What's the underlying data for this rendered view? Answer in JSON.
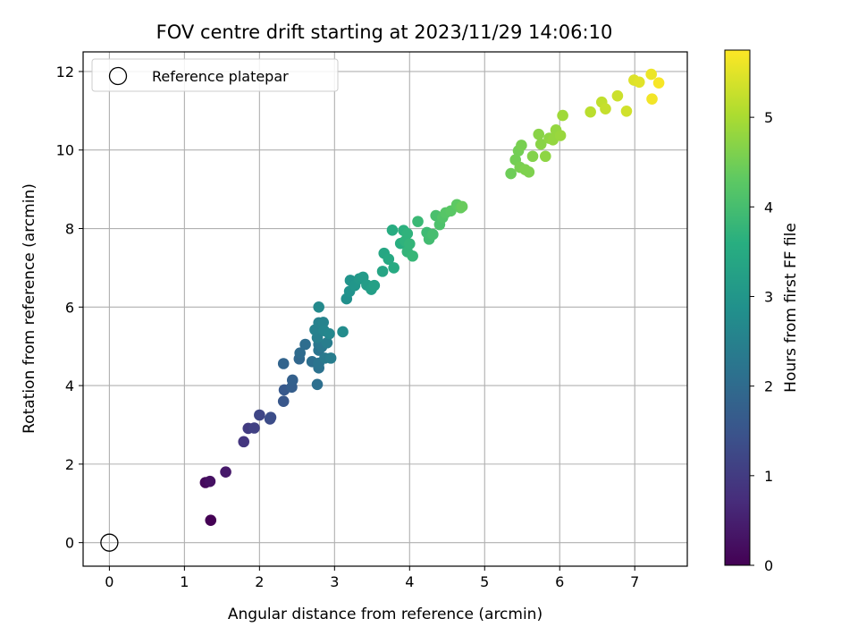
{
  "chart_data": {
    "type": "scatter",
    "title": "FOV centre drift starting at 2023/11/29 14:06:10",
    "xlabel": "Angular distance from reference (arcmin)",
    "ylabel": "Rotation from reference (arcmin)",
    "xlim": [
      -0.35,
      7.7
    ],
    "ylim": [
      -0.6,
      12.5
    ],
    "xticks": [
      0,
      1,
      2,
      3,
      4,
      5,
      6,
      7
    ],
    "yticks": [
      0,
      2,
      4,
      6,
      8,
      10,
      12
    ],
    "grid": true,
    "legend": {
      "placement": "top-left",
      "entries": [
        "Reference platepar"
      ]
    },
    "reference_point": {
      "x": 0,
      "y": 0
    },
    "colorbar": {
      "label": "Hours from first FF file",
      "range": [
        0,
        5.75
      ],
      "ticks": [
        0,
        1,
        2,
        3,
        4,
        5
      ],
      "colormap": "viridis"
    },
    "points": [
      {
        "x": 1.35,
        "y": 0.57,
        "c": 0.0
      },
      {
        "x": 1.28,
        "y": 1.53,
        "c": 0.15
      },
      {
        "x": 1.34,
        "y": 1.56,
        "c": 0.25
      },
      {
        "x": 1.55,
        "y": 1.8,
        "c": 0.4
      },
      {
        "x": 1.79,
        "y": 2.57,
        "c": 0.9
      },
      {
        "x": 1.85,
        "y": 2.91,
        "c": 1.0
      },
      {
        "x": 1.93,
        "y": 2.92,
        "c": 1.1
      },
      {
        "x": 2.0,
        "y": 3.25,
        "c": 1.2
      },
      {
        "x": 2.14,
        "y": 3.15,
        "c": 1.3
      },
      {
        "x": 2.15,
        "y": 3.19,
        "c": 1.35
      },
      {
        "x": 2.32,
        "y": 3.6,
        "c": 1.55
      },
      {
        "x": 2.33,
        "y": 3.89,
        "c": 1.6
      },
      {
        "x": 2.43,
        "y": 3.96,
        "c": 1.7
      },
      {
        "x": 2.44,
        "y": 4.14,
        "c": 1.75
      },
      {
        "x": 2.32,
        "y": 4.56,
        "c": 1.85
      },
      {
        "x": 2.53,
        "y": 4.68,
        "c": 1.9
      },
      {
        "x": 2.54,
        "y": 4.83,
        "c": 2.0
      },
      {
        "x": 2.61,
        "y": 5.05,
        "c": 2.05
      },
      {
        "x": 2.7,
        "y": 4.61,
        "c": 2.1
      },
      {
        "x": 2.77,
        "y": 4.03,
        "c": 2.1
      },
      {
        "x": 2.79,
        "y": 4.45,
        "c": 2.15
      },
      {
        "x": 2.79,
        "y": 4.57,
        "c": 2.2
      },
      {
        "x": 2.79,
        "y": 4.9,
        "c": 2.2
      },
      {
        "x": 2.79,
        "y": 5.05,
        "c": 2.25
      },
      {
        "x": 2.83,
        "y": 4.99,
        "c": 2.3
      },
      {
        "x": 2.87,
        "y": 4.7,
        "c": 2.35
      },
      {
        "x": 2.9,
        "y": 5.09,
        "c": 2.4
      },
      {
        "x": 2.95,
        "y": 4.7,
        "c": 2.4
      },
      {
        "x": 2.77,
        "y": 5.22,
        "c": 2.45
      },
      {
        "x": 2.74,
        "y": 5.42,
        "c": 2.5
      },
      {
        "x": 2.79,
        "y": 5.6,
        "c": 2.5
      },
      {
        "x": 2.85,
        "y": 5.61,
        "c": 2.55
      },
      {
        "x": 2.86,
        "y": 5.4,
        "c": 2.6
      },
      {
        "x": 2.93,
        "y": 5.32,
        "c": 2.65
      },
      {
        "x": 2.79,
        "y": 6.0,
        "c": 2.7
      },
      {
        "x": 3.11,
        "y": 5.37,
        "c": 2.75
      },
      {
        "x": 3.16,
        "y": 6.21,
        "c": 2.85
      },
      {
        "x": 3.2,
        "y": 6.4,
        "c": 2.9
      },
      {
        "x": 3.21,
        "y": 6.68,
        "c": 2.95
      },
      {
        "x": 3.27,
        "y": 6.55,
        "c": 3.0
      },
      {
        "x": 3.33,
        "y": 6.72,
        "c": 3.05
      },
      {
        "x": 3.38,
        "y": 6.76,
        "c": 3.1
      },
      {
        "x": 3.43,
        "y": 6.56,
        "c": 3.15
      },
      {
        "x": 3.49,
        "y": 6.45,
        "c": 3.2
      },
      {
        "x": 3.53,
        "y": 6.55,
        "c": 3.25
      },
      {
        "x": 3.64,
        "y": 6.91,
        "c": 3.35
      },
      {
        "x": 3.66,
        "y": 7.37,
        "c": 3.4
      },
      {
        "x": 3.72,
        "y": 7.22,
        "c": 3.45
      },
      {
        "x": 3.79,
        "y": 7.0,
        "c": 3.5
      },
      {
        "x": 3.77,
        "y": 7.96,
        "c": 3.55
      },
      {
        "x": 3.88,
        "y": 7.62,
        "c": 3.6
      },
      {
        "x": 3.92,
        "y": 7.95,
        "c": 3.65
      },
      {
        "x": 3.94,
        "y": 7.68,
        "c": 3.7
      },
      {
        "x": 3.97,
        "y": 7.87,
        "c": 3.7
      },
      {
        "x": 3.97,
        "y": 7.41,
        "c": 3.75
      },
      {
        "x": 4.0,
        "y": 7.61,
        "c": 3.75
      },
      {
        "x": 4.04,
        "y": 7.3,
        "c": 3.8
      },
      {
        "x": 4.11,
        "y": 8.18,
        "c": 3.85
      },
      {
        "x": 4.23,
        "y": 7.9,
        "c": 3.9
      },
      {
        "x": 4.26,
        "y": 7.73,
        "c": 3.95
      },
      {
        "x": 4.31,
        "y": 7.85,
        "c": 4.0
      },
      {
        "x": 4.35,
        "y": 8.33,
        "c": 4.05
      },
      {
        "x": 4.4,
        "y": 8.1,
        "c": 4.1
      },
      {
        "x": 4.44,
        "y": 8.28,
        "c": 4.15
      },
      {
        "x": 4.48,
        "y": 8.4,
        "c": 4.2
      },
      {
        "x": 4.55,
        "y": 8.45,
        "c": 4.25
      },
      {
        "x": 4.63,
        "y": 8.61,
        "c": 4.3
      },
      {
        "x": 4.68,
        "y": 8.53,
        "c": 4.35
      },
      {
        "x": 4.7,
        "y": 8.56,
        "c": 4.4
      },
      {
        "x": 5.35,
        "y": 9.4,
        "c": 4.45
      },
      {
        "x": 5.41,
        "y": 9.75,
        "c": 4.5
      },
      {
        "x": 5.45,
        "y": 9.98,
        "c": 4.5
      },
      {
        "x": 5.49,
        "y": 10.12,
        "c": 4.55
      },
      {
        "x": 5.47,
        "y": 9.56,
        "c": 4.55
      },
      {
        "x": 5.54,
        "y": 9.5,
        "c": 4.6
      },
      {
        "x": 5.59,
        "y": 9.44,
        "c": 4.6
      },
      {
        "x": 5.64,
        "y": 9.84,
        "c": 4.65
      },
      {
        "x": 5.72,
        "y": 10.4,
        "c": 4.7
      },
      {
        "x": 5.75,
        "y": 10.15,
        "c": 4.7
      },
      {
        "x": 5.81,
        "y": 9.84,
        "c": 4.75
      },
      {
        "x": 5.86,
        "y": 10.3,
        "c": 4.75
      },
      {
        "x": 5.91,
        "y": 10.26,
        "c": 4.8
      },
      {
        "x": 5.95,
        "y": 10.51,
        "c": 4.8
      },
      {
        "x": 6.01,
        "y": 10.37,
        "c": 4.85
      },
      {
        "x": 6.04,
        "y": 10.88,
        "c": 4.9
      },
      {
        "x": 6.41,
        "y": 10.97,
        "c": 5.15
      },
      {
        "x": 6.56,
        "y": 11.22,
        "c": 5.2
      },
      {
        "x": 6.61,
        "y": 11.05,
        "c": 5.25
      },
      {
        "x": 6.77,
        "y": 11.38,
        "c": 5.3
      },
      {
        "x": 6.89,
        "y": 10.99,
        "c": 5.35
      },
      {
        "x": 6.99,
        "y": 11.78,
        "c": 5.45
      },
      {
        "x": 7.06,
        "y": 11.73,
        "c": 5.5
      },
      {
        "x": 7.22,
        "y": 11.93,
        "c": 5.6
      },
      {
        "x": 7.23,
        "y": 11.3,
        "c": 5.65
      },
      {
        "x": 7.32,
        "y": 11.71,
        "c": 5.7
      }
    ]
  }
}
